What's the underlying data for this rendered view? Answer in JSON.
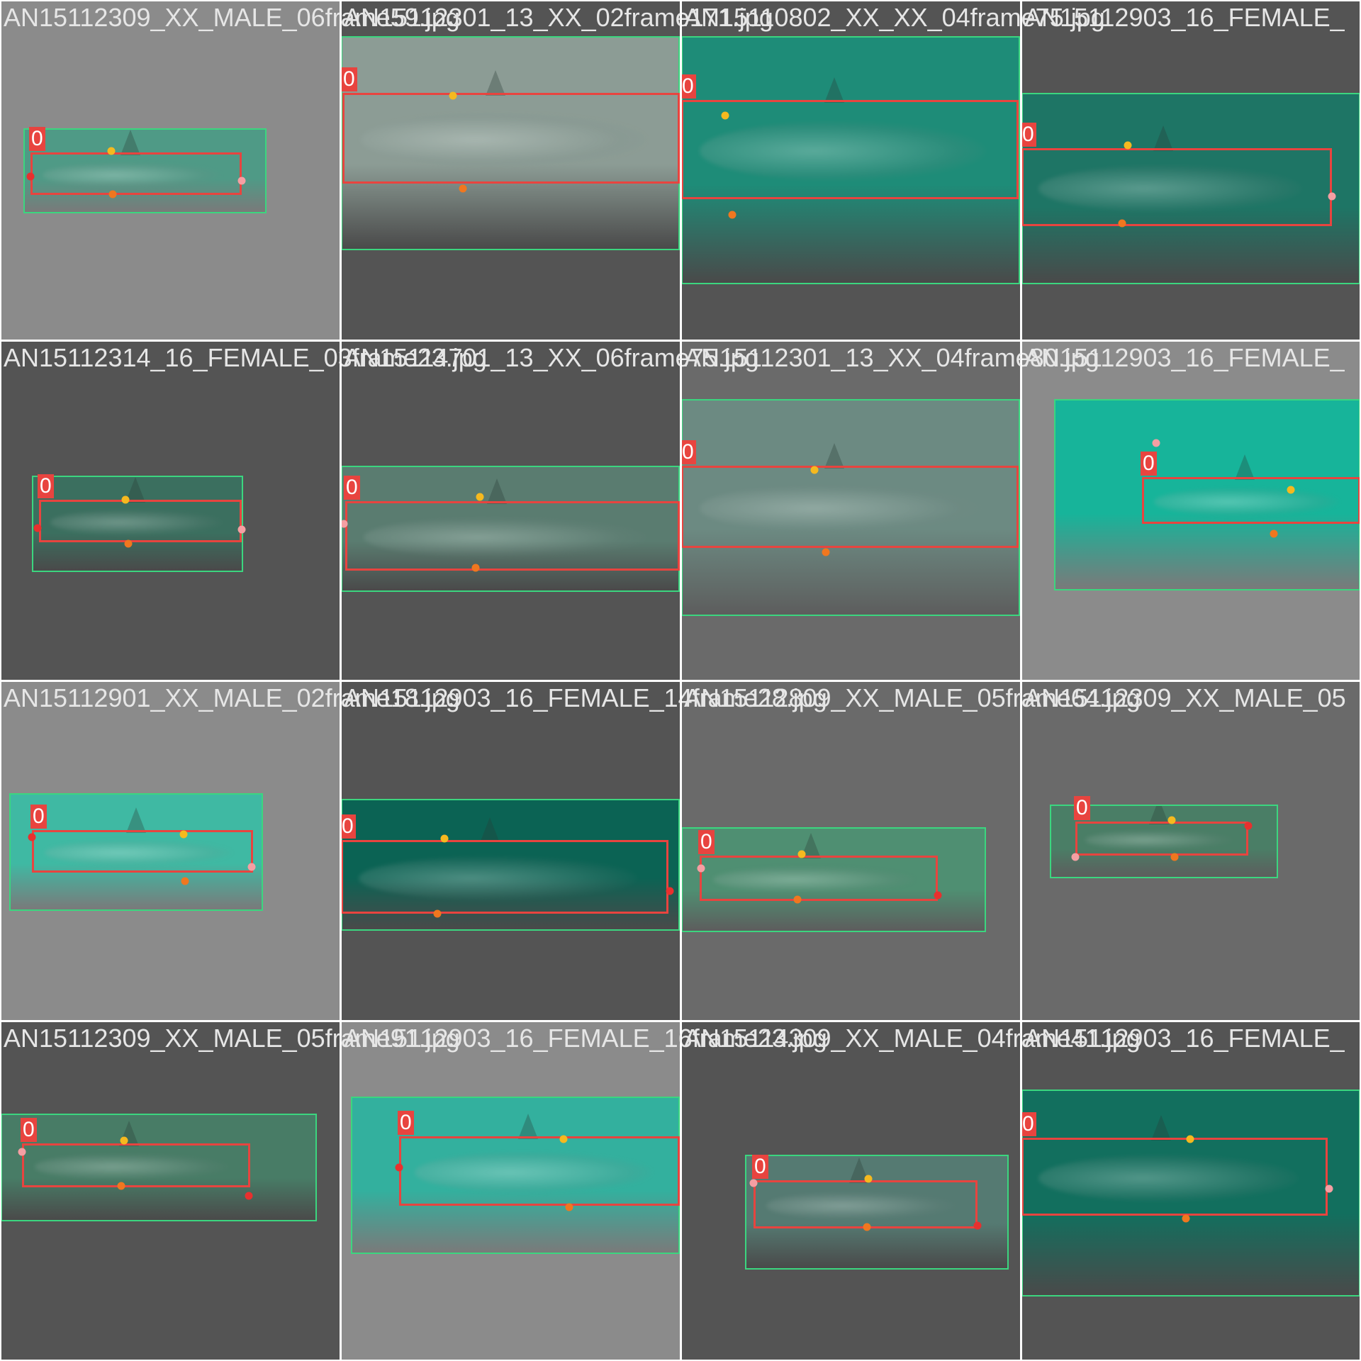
{
  "mosaic": {
    "tiles": [
      {
        "filename": "AN15112309_XX_MALE_06frame59.jpg",
        "label": "0",
        "bg": "light",
        "water": "#4f9a86"
      },
      {
        "filename": "AN15112301_13_XX_02frame171.jpg",
        "label": "0",
        "bg": "dark",
        "water": "#8c9c95"
      },
      {
        "filename": "AN15110802_XX_XX_04frame75.jpg",
        "label": "0",
        "bg": "dark",
        "water": "#1e8c78"
      },
      {
        "filename": "AN15112903_16_FEMALE_",
        "label": "0",
        "bg": "dark",
        "water": "#1e7565"
      },
      {
        "filename": "AN15112314_16_FEMALE_03frame23.jpg",
        "label": "0",
        "bg": "dark",
        "water": "#3b6f5f"
      },
      {
        "filename": "AN15114701_13_XX_06frame75.jpg",
        "label": "0",
        "bg": "dark",
        "water": "#5a7c70"
      },
      {
        "filename": "AN15112301_13_XX_04frame80.jpg",
        "label": "0",
        "bg": "mid",
        "water": "#6c8a82"
      },
      {
        "filename": "AN15112903_16_FEMALE_",
        "label": "0",
        "bg": "light",
        "water": "#17b49a"
      },
      {
        "filename": "AN15112901_XX_MALE_02frame18.jpg",
        "label": "0",
        "bg": "light",
        "water": "#3fb9a3"
      },
      {
        "filename": "AN15112903_16_FEMALE_14frame28.jpg",
        "label": "0",
        "bg": "dark",
        "water": "#0b6354"
      },
      {
        "filename": "AN15112809_XX_MALE_05frame64.jpg",
        "label": "0",
        "bg": "mid",
        "water": "#4f8f72"
      },
      {
        "filename": "AN15112309_XX_MALE_05",
        "label": "0",
        "bg": "mid",
        "water": "#4a7e66"
      },
      {
        "filename": "AN15112309_XX_MALE_05frame91.jpg",
        "label": "0",
        "bg": "dark",
        "water": "#487c66"
      },
      {
        "filename": "AN15112903_16_FEMALE_16frame23.jpg",
        "label": "0",
        "bg": "light",
        "water": "#33b09e"
      },
      {
        "filename": "AN15114309_XX_MALE_04frame41.jpg",
        "label": "0",
        "bg": "dark",
        "water": "#557a72"
      },
      {
        "filename": "AN15112903_16_FEMALE_",
        "label": "0",
        "bg": "dark",
        "water": "#126f5e"
      }
    ]
  },
  "colors": {
    "bbox": "#e8443f",
    "kp_head": "#f59fa3",
    "kp_dorsal": "#f5b91f",
    "kp_pelvic": "#f0771f",
    "kp_tail": "#e8302e",
    "photo_border": "#3bd67f"
  }
}
